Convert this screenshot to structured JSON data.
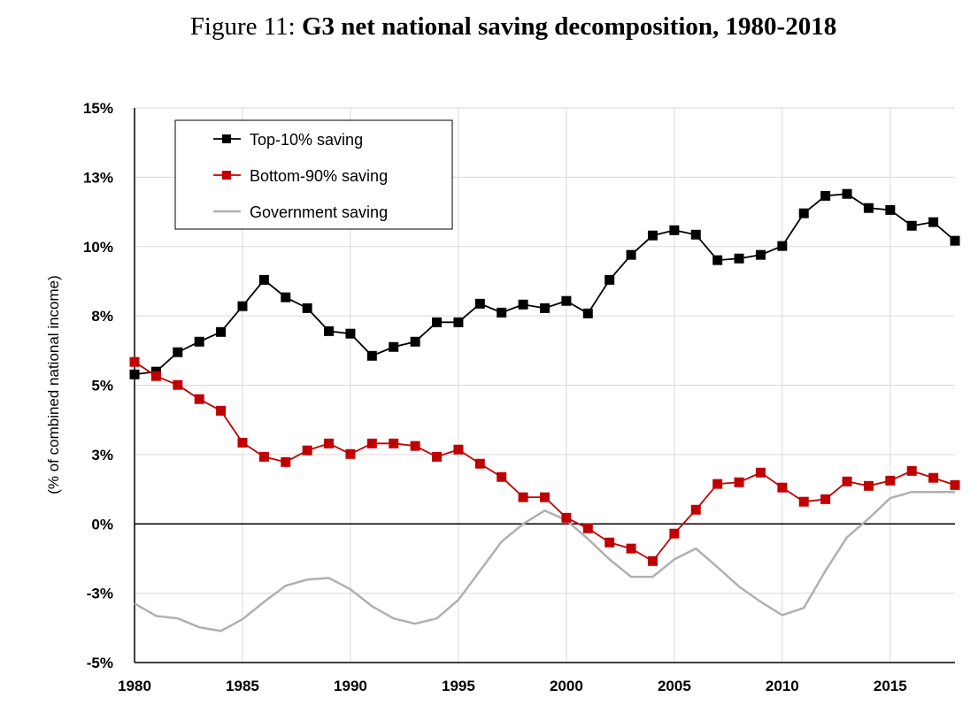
{
  "title": {
    "prefix": "Figure 11:",
    "main": "G3 net national saving decomposition, 1980-2018"
  },
  "chart_data": {
    "type": "line",
    "title": "Figure 11: G3 net national saving decomposition, 1980-2018",
    "xlabel": "",
    "ylabel": "(% of combined national income)",
    "xlim": [
      1980,
      2018
    ],
    "ylim": [
      -5,
      15
    ],
    "x_ticks": [
      1980,
      1985,
      1990,
      1995,
      2000,
      2005,
      2010,
      2015
    ],
    "x_tick_labels": [
      "1980",
      "1985",
      "1990",
      "1995",
      "2000",
      "2005",
      "2010",
      "2015"
    ],
    "y_ticks": [
      15,
      12.5,
      10,
      7.5,
      5,
      2.5,
      0,
      -2.5,
      -5
    ],
    "y_tick_labels": [
      "15%",
      "13%",
      "10%",
      "8%",
      "5%",
      "3%",
      "0%",
      "-3%",
      "-5%"
    ],
    "grid": true,
    "legend_position": "top-left",
    "x": [
      1980,
      1981,
      1982,
      1983,
      1984,
      1985,
      1986,
      1987,
      1988,
      1989,
      1990,
      1991,
      1992,
      1993,
      1994,
      1995,
      1996,
      1997,
      1998,
      1999,
      2000,
      2001,
      2002,
      2003,
      2004,
      2005,
      2006,
      2007,
      2008,
      2009,
      2010,
      2011,
      2012,
      2013,
      2014,
      2015,
      2016,
      2017,
      2018
    ],
    "series": [
      {
        "name": "Top-10% saving",
        "color": "#000000",
        "marker": "square",
        "values": [
          5.39,
          5.49,
          6.19,
          6.57,
          6.92,
          7.85,
          8.8,
          8.17,
          7.78,
          6.95,
          6.86,
          6.06,
          6.38,
          6.57,
          7.27,
          7.27,
          7.94,
          7.62,
          7.91,
          7.78,
          8.04,
          7.59,
          8.8,
          9.7,
          10.4,
          10.59,
          10.43,
          9.51,
          9.57,
          9.7,
          10.02,
          11.2,
          11.83,
          11.9,
          11.39,
          11.32,
          10.75,
          10.88,
          10.21
        ]
      },
      {
        "name": "Bottom-90% saving",
        "color": "#c00000",
        "marker": "square",
        "values": [
          5.84,
          5.33,
          5.01,
          4.5,
          4.08,
          2.93,
          2.42,
          2.23,
          2.65,
          2.9,
          2.52,
          2.9,
          2.9,
          2.81,
          2.42,
          2.68,
          2.17,
          1.69,
          0.96,
          0.96,
          0.22,
          -0.16,
          -0.67,
          -0.89,
          -1.34,
          -0.35,
          0.51,
          1.44,
          1.5,
          1.85,
          1.31,
          0.8,
          0.89,
          1.53,
          1.37,
          1.56,
          1.91,
          1.66,
          1.4
        ]
      },
      {
        "name": "Government saving",
        "color": "#b0b0b0",
        "marker": "none",
        "values": [
          -2.87,
          -3.32,
          -3.41,
          -3.73,
          -3.86,
          -3.44,
          -2.81,
          -2.23,
          -2.01,
          -1.95,
          -2.36,
          -2.97,
          -3.41,
          -3.6,
          -3.41,
          -2.74,
          -1.69,
          -0.64,
          0.0,
          0.48,
          0.13,
          -0.54,
          -1.28,
          -1.91,
          -1.91,
          -1.28,
          -0.89,
          -1.56,
          -2.26,
          -2.81,
          -3.29,
          -3.03,
          -1.69,
          -0.48,
          0.19,
          0.93,
          1.15,
          1.15,
          1.15
        ]
      }
    ]
  }
}
